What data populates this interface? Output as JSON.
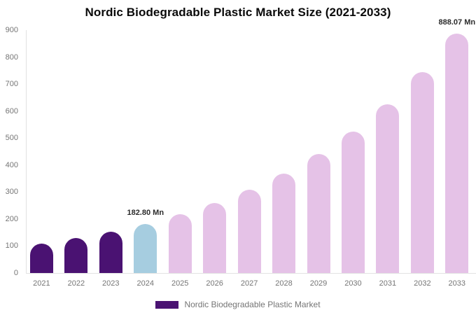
{
  "colors": {
    "historical": "#4A1272",
    "base_year": "#A6CDE0",
    "forecast": "#E5C2E7",
    "axis_line": "#E2E2E2",
    "tick_text": "#757575",
    "annotation_text": "#2B2B2B",
    "title_text": "#0A0A0A",
    "legend_text": "#757575",
    "background": "#FFFFFF"
  },
  "chart_data": {
    "type": "bar",
    "title": "Nordic Biodegradable Plastic Market Size (2021-2033)",
    "unit": "Mn",
    "categories": [
      "2021",
      "2022",
      "2023",
      "2024",
      "2025",
      "2026",
      "2027",
      "2028",
      "2029",
      "2030",
      "2031",
      "2032",
      "2033"
    ],
    "values": [
      107.9,
      128.7,
      153.4,
      182.8,
      217.9,
      259.7,
      309.6,
      369.0,
      439.9,
      524.4,
      625.0,
      745.0,
      888.07
    ],
    "bar_roles": [
      "historical",
      "historical",
      "historical",
      "base_year",
      "forecast",
      "forecast",
      "forecast",
      "forecast",
      "forecast",
      "forecast",
      "forecast",
      "forecast",
      "forecast"
    ],
    "xlabel": "",
    "ylabel": "",
    "ylim": [
      0,
      900
    ],
    "y_ticks": [
      0,
      100,
      200,
      300,
      400,
      500,
      600,
      700,
      800,
      900
    ],
    "grid": false,
    "legend_position": "bottom",
    "annotations": [
      {
        "category": "2024",
        "text": "182.80 Mn"
      },
      {
        "category": "2033",
        "text": "888.07 Mn"
      }
    ],
    "legend": [
      {
        "label": "Nordic Biodegradable Plastic Market",
        "color_role": "historical"
      }
    ]
  }
}
